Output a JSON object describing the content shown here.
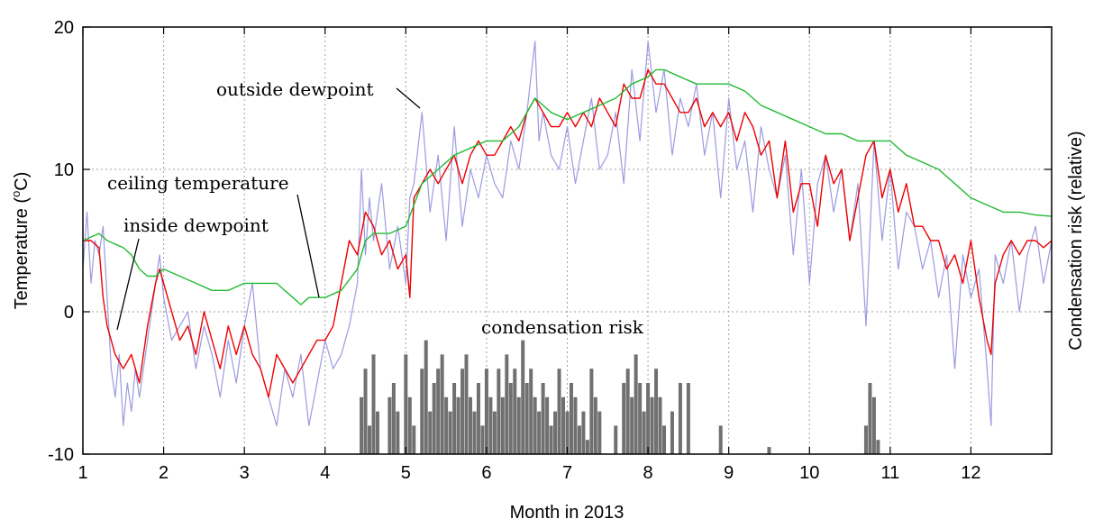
{
  "chart_data": {
    "type": "line",
    "xlabel": "Month in 2013",
    "ylabel_main": "Temperature (",
    "ylabel_sup": "o",
    "ylabel_tail": "C)",
    "y2label": "Condensation risk (relative)",
    "xlim": [
      1,
      13
    ],
    "ylim": [
      -10,
      20
    ],
    "x_ticks": [
      1,
      2,
      3,
      4,
      5,
      6,
      7,
      8,
      9,
      10,
      11,
      12
    ],
    "y_ticks": [
      -10,
      0,
      10,
      20
    ],
    "grid": true,
    "annotations": {
      "outside": "outside dewpoint",
      "ceiling": "ceiling temperature",
      "inside": "inside dewpoint",
      "risk": "condensation risk"
    },
    "series": [
      {
        "name": "outside dewpoint",
        "color": "#9b9be0",
        "x": [
          1.0,
          1.05,
          1.1,
          1.15,
          1.2,
          1.25,
          1.3,
          1.35,
          1.4,
          1.45,
          1.5,
          1.55,
          1.6,
          1.65,
          1.7,
          1.8,
          1.9,
          1.95,
          2.0,
          2.1,
          2.2,
          2.3,
          2.4,
          2.5,
          2.6,
          2.7,
          2.8,
          2.9,
          3.0,
          3.1,
          3.2,
          3.3,
          3.4,
          3.5,
          3.6,
          3.7,
          3.8,
          3.9,
          4.0,
          4.1,
          4.2,
          4.3,
          4.4,
          4.45,
          4.5,
          4.55,
          4.6,
          4.7,
          4.8,
          4.9,
          5.0,
          5.05,
          5.1,
          5.2,
          5.3,
          5.4,
          5.5,
          5.6,
          5.7,
          5.8,
          5.9,
          6.0,
          6.1,
          6.2,
          6.3,
          6.4,
          6.5,
          6.6,
          6.65,
          6.7,
          6.8,
          6.9,
          7.0,
          7.1,
          7.2,
          7.3,
          7.4,
          7.5,
          7.6,
          7.7,
          7.8,
          7.9,
          8.0,
          8.1,
          8.2,
          8.3,
          8.4,
          8.5,
          8.6,
          8.7,
          8.8,
          8.9,
          9.0,
          9.1,
          9.2,
          9.3,
          9.4,
          9.5,
          9.6,
          9.7,
          9.8,
          9.9,
          10.0,
          10.1,
          10.2,
          10.3,
          10.4,
          10.5,
          10.6,
          10.7,
          10.8,
          10.9,
          11.0,
          11.1,
          11.2,
          11.3,
          11.4,
          11.5,
          11.6,
          11.7,
          11.8,
          11.9,
          12.0,
          12.1,
          12.2,
          12.25,
          12.3,
          12.4,
          12.5,
          12.6,
          12.7,
          12.8,
          12.9,
          13.0
        ],
        "y": [
          3,
          7,
          2,
          5,
          4,
          6,
          1,
          -4,
          -6,
          -3,
          -8,
          -5,
          -7,
          -4,
          -6,
          -2,
          2,
          4,
          1,
          -2,
          -1,
          0,
          -4,
          -1,
          -3,
          -6,
          -2,
          -5,
          -1,
          2,
          -4,
          -6,
          -8,
          -4,
          -6,
          -3,
          -8,
          -5,
          -2,
          -4,
          -3,
          -1,
          2,
          10,
          4,
          8,
          5,
          9,
          3,
          6,
          2,
          8,
          9,
          14,
          7,
          11,
          5,
          13,
          6,
          10,
          8,
          11,
          9,
          8,
          12,
          10,
          14,
          19,
          12,
          14,
          11,
          10,
          13,
          9,
          12,
          15,
          10,
          11,
          14,
          9,
          17,
          12,
          19,
          14,
          17,
          11,
          15,
          13,
          16,
          11,
          14,
          8,
          15,
          10,
          12,
          7,
          13,
          10,
          8,
          11,
          4,
          10,
          2,
          9,
          11,
          7,
          10,
          5,
          9,
          -1,
          12,
          5,
          10,
          3,
          7,
          6,
          3,
          5,
          1,
          4,
          -4,
          4,
          1,
          3,
          -4,
          -8,
          4,
          2,
          5,
          0,
          4,
          6,
          2,
          5
        ]
      },
      {
        "name": "inside dewpoint",
        "color": "#ee0000",
        "x": [
          1.0,
          1.1,
          1.2,
          1.25,
          1.3,
          1.35,
          1.4,
          1.5,
          1.6,
          1.7,
          1.8,
          1.9,
          1.95,
          2.0,
          2.1,
          2.2,
          2.3,
          2.4,
          2.5,
          2.6,
          2.7,
          2.8,
          2.9,
          3.0,
          3.1,
          3.2,
          3.3,
          3.4,
          3.5,
          3.6,
          3.7,
          3.8,
          3.9,
          4.0,
          4.1,
          4.2,
          4.3,
          4.4,
          4.5,
          4.6,
          4.7,
          4.8,
          4.9,
          5.0,
          5.05,
          5.1,
          5.2,
          5.3,
          5.4,
          5.5,
          5.6,
          5.7,
          5.8,
          5.9,
          6.0,
          6.1,
          6.2,
          6.3,
          6.4,
          6.5,
          6.6,
          6.7,
          6.8,
          6.9,
          7.0,
          7.1,
          7.2,
          7.3,
          7.4,
          7.5,
          7.6,
          7.7,
          7.8,
          7.9,
          8.0,
          8.1,
          8.2,
          8.3,
          8.4,
          8.5,
          8.6,
          8.7,
          8.8,
          8.9,
          9.0,
          9.1,
          9.2,
          9.3,
          9.4,
          9.5,
          9.6,
          9.7,
          9.8,
          9.9,
          10.0,
          10.1,
          10.2,
          10.3,
          10.4,
          10.5,
          10.6,
          10.7,
          10.8,
          10.9,
          11.0,
          11.1,
          11.2,
          11.3,
          11.4,
          11.5,
          11.6,
          11.7,
          11.8,
          11.9,
          12.0,
          12.1,
          12.2,
          12.25,
          12.3,
          12.4,
          12.5,
          12.6,
          12.7,
          12.8,
          12.9,
          13.0
        ],
        "y": [
          5,
          5,
          4.5,
          1,
          -1,
          -2,
          -3,
          -4,
          -3,
          -5,
          -1,
          2,
          3,
          2,
          0,
          -2,
          -1,
          -3,
          0,
          -2,
          -4,
          -1,
          -3,
          -1,
          -3,
          -4,
          -6,
          -3,
          -4,
          -5,
          -4,
          -3,
          -2,
          -2,
          -1,
          2,
          5,
          4,
          7,
          6,
          4,
          5,
          3,
          4,
          1,
          8,
          9,
          10,
          9,
          10,
          11,
          9,
          11,
          12,
          11,
          11,
          12,
          13,
          12,
          14,
          15,
          14,
          13,
          13,
          14,
          13,
          14,
          13,
          15,
          14,
          13,
          16,
          15,
          15,
          17,
          16,
          16,
          15,
          14,
          14,
          15,
          13,
          14,
          13,
          14,
          12,
          14,
          13,
          11,
          12,
          8,
          12,
          7,
          9,
          9,
          6,
          11,
          9,
          10,
          5,
          8,
          11,
          12,
          8,
          10,
          7,
          9,
          6,
          6,
          5,
          5,
          3,
          4,
          2,
          5,
          1,
          -2,
          -3,
          2,
          4,
          5,
          4,
          5,
          5,
          4.5,
          5
        ]
      },
      {
        "name": "ceiling temperature",
        "color": "#22bb33",
        "x": [
          1.0,
          1.2,
          1.3,
          1.5,
          1.6,
          1.7,
          1.8,
          1.9,
          2.0,
          2.2,
          2.4,
          2.6,
          2.8,
          3.0,
          3.2,
          3.4,
          3.6,
          3.7,
          3.8,
          4.0,
          4.2,
          4.4,
          4.5,
          4.6,
          4.8,
          5.0,
          5.2,
          5.4,
          5.6,
          5.8,
          6.0,
          6.2,
          6.4,
          6.6,
          6.8,
          7.0,
          7.2,
          7.4,
          7.6,
          7.8,
          8.0,
          8.1,
          8.2,
          8.4,
          8.6,
          8.8,
          9.0,
          9.2,
          9.4,
          9.6,
          9.8,
          10.0,
          10.2,
          10.4,
          10.6,
          10.8,
          11.0,
          11.2,
          11.4,
          11.6,
          11.8,
          12.0,
          12.2,
          12.4,
          12.6,
          12.8,
          13.0
        ],
        "y": [
          5,
          5.5,
          5,
          4.5,
          4,
          3,
          2.5,
          2.5,
          3,
          2.5,
          2,
          1.5,
          1.5,
          2,
          2,
          2,
          1,
          0.5,
          1,
          1,
          1.5,
          3,
          5,
          5.5,
          5.5,
          6,
          9,
          10,
          11,
          11.5,
          12,
          12,
          13,
          15,
          14,
          13.5,
          14,
          14.5,
          15,
          16,
          16.5,
          17,
          17,
          16.5,
          16,
          16,
          16,
          15.5,
          14.5,
          14,
          13.5,
          13,
          12.5,
          12.5,
          12,
          12,
          12,
          11,
          10.5,
          10,
          9,
          8,
          7.5,
          7,
          7,
          6.8,
          6.7
        ]
      }
    ],
    "risk_bars": {
      "name": "condensation risk",
      "color": "#707070",
      "x": [
        4.45,
        4.5,
        4.55,
        4.6,
        4.65,
        4.8,
        4.85,
        4.9,
        5.0,
        5.05,
        5.1,
        5.2,
        5.25,
        5.3,
        5.35,
        5.4,
        5.45,
        5.5,
        5.55,
        5.6,
        5.65,
        5.7,
        5.75,
        5.8,
        5.85,
        5.9,
        5.95,
        6.0,
        6.05,
        6.1,
        6.15,
        6.2,
        6.25,
        6.3,
        6.35,
        6.4,
        6.45,
        6.5,
        6.55,
        6.6,
        6.65,
        6.7,
        6.75,
        6.8,
        6.85,
        6.9,
        6.95,
        7.0,
        7.05,
        7.1,
        7.15,
        7.2,
        7.25,
        7.3,
        7.35,
        7.4,
        7.6,
        7.7,
        7.75,
        7.8,
        7.85,
        7.9,
        7.95,
        8.0,
        8.05,
        8.1,
        8.15,
        8.2,
        8.3,
        8.4,
        8.5,
        8.9,
        9.5,
        10.7,
        10.75,
        10.8,
        10.85
      ],
      "y": [
        -6,
        -4,
        -8,
        -3,
        -7,
        -6,
        -5,
        -7,
        -3,
        -6,
        -8,
        -4,
        -2,
        -7,
        -5,
        -4,
        -3,
        -6,
        -7,
        -5,
        -6,
        -4,
        -3,
        -6,
        -7,
        -5,
        -8,
        -4,
        -6,
        -7,
        -4,
        -6,
        -3,
        -5,
        -4,
        -6,
        -2,
        -5,
        -4,
        -6,
        -7,
        -5,
        -6,
        -8,
        -7,
        -4,
        -6,
        -7,
        -5,
        -6,
        -8,
        -7,
        -9,
        -4,
        -6,
        -7,
        -8,
        -5,
        -4,
        -6,
        -3,
        -5,
        -7,
        -5,
        -6,
        -4,
        -6,
        -8,
        -7,
        -5,
        -5,
        -8,
        -9.5,
        -8,
        -5,
        -6,
        -9
      ]
    }
  }
}
